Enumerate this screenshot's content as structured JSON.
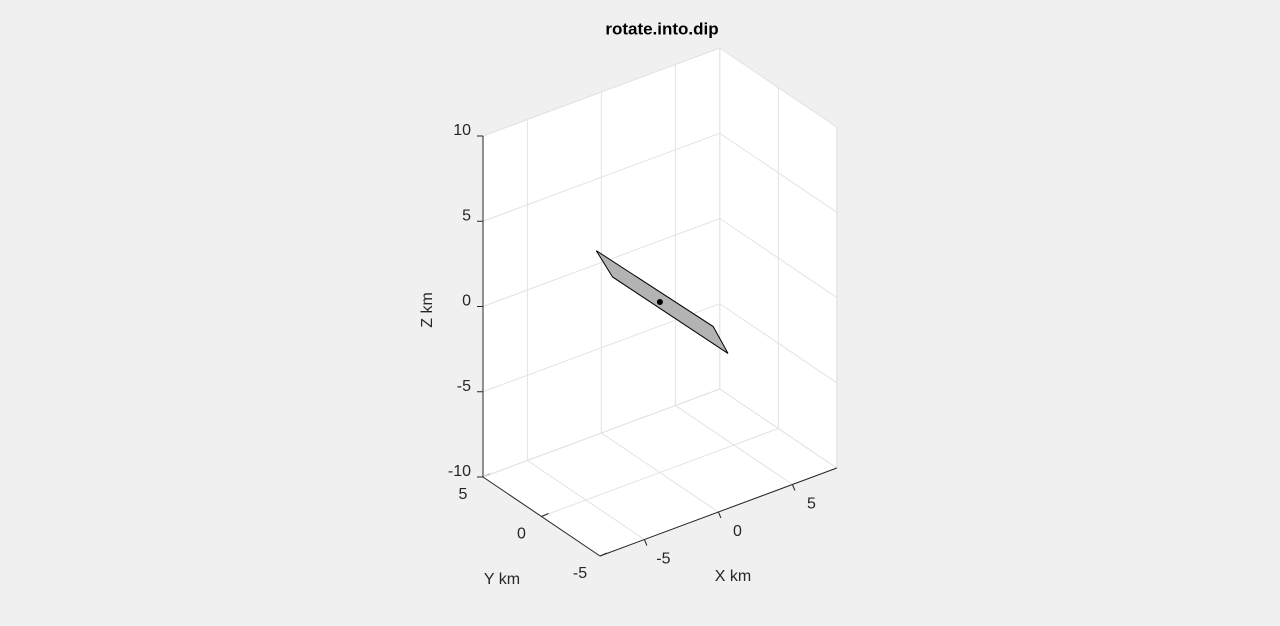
{
  "chart_data": {
    "type": "patch3d",
    "title": "rotate.into.dip",
    "xlabel": "X km",
    "ylabel": "Y km",
    "zlabel": "Z km",
    "xlim": [
      -8,
      8
    ],
    "ylim": [
      -5,
      5
    ],
    "zlim": [
      -10,
      10
    ],
    "xticks": [
      -5,
      0,
      5
    ],
    "yticks": [
      -5,
      0,
      5
    ],
    "zticks": [
      -10,
      -5,
      0,
      5,
      10
    ],
    "grid": true,
    "patch": {
      "color": "#b3b3b3",
      "x": [
        -4.3,
        -3.2,
        4.6,
        3.6
      ],
      "y": [
        0,
        0,
        0,
        0
      ],
      "z": [
        4.4,
        2.5,
        -4.5,
        -2.6
      ]
    },
    "point": {
      "color": "#000000",
      "x": 0,
      "y": 0,
      "z": 0
    }
  }
}
